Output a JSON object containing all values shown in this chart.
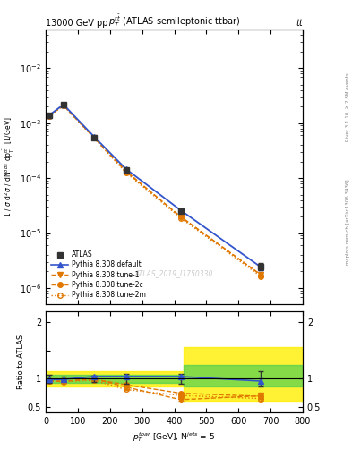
{
  "x_pts": [
    10,
    55,
    150,
    250,
    420,
    670
  ],
  "atlas_y": [
    0.0014,
    0.0022,
    0.00055,
    0.00014,
    2.5e-05,
    2.5e-06
  ],
  "atlas_yerr": [
    0.0001,
    0.0001,
    3e-05,
    1.2e-05,
    2e-06,
    3.5e-07
  ],
  "pythia_default_y": [
    0.00138,
    0.00218,
    0.00057,
    0.000146,
    2.6e-05,
    2.4e-06
  ],
  "pythia_tune1_y": [
    0.00135,
    0.0021,
    0.00055,
    0.000135,
    1.95e-05,
    1.75e-06
  ],
  "pythia_tune2c_y": [
    0.00135,
    0.0021,
    0.000545,
    0.00013,
    2e-05,
    1.72e-06
  ],
  "pythia_tune2m_y": [
    0.00134,
    0.00208,
    0.000535,
    0.000125,
    1.88e-05,
    1.62e-06
  ],
  "ratio_default_y": [
    0.985,
    0.99,
    1.04,
    1.04,
    1.04,
    0.96
  ],
  "ratio_default_yerr": [
    0.01,
    0.008,
    0.01,
    0.01,
    0.015,
    0.04
  ],
  "ratio_atlas_yerr": [
    0.07,
    0.045,
    0.055,
    0.085,
    0.08,
    0.14
  ],
  "ratio_tune1_y": [
    0.965,
    0.955,
    1.0,
    0.855,
    0.63,
    0.7
  ],
  "ratio_tune1_yerr": [
    0.01,
    0.008,
    0.01,
    0.01,
    0.015,
    0.04
  ],
  "ratio_tune2c_y": [
    0.965,
    0.955,
    0.995,
    0.895,
    0.745,
    0.69
  ],
  "ratio_tune2c_yerr": [
    0.01,
    0.008,
    0.01,
    0.01,
    0.015,
    0.04
  ],
  "ratio_tune2m_y": [
    0.96,
    0.95,
    0.975,
    0.81,
    0.705,
    0.65
  ],
  "ratio_tune2m_yerr": [
    0.01,
    0.008,
    0.01,
    0.01,
    0.015,
    0.04
  ],
  "band_x_step": [
    0,
    150,
    150,
    430,
    430,
    800
  ],
  "band_green_lo": [
    0.935,
    0.935,
    0.935,
    0.935,
    0.86,
    0.86
  ],
  "band_green_hi": [
    1.065,
    1.065,
    1.065,
    1.065,
    1.24,
    1.24
  ],
  "band_yellow_lo": [
    0.86,
    0.86,
    0.86,
    0.86,
    0.62,
    0.62
  ],
  "band_yellow_hi": [
    1.14,
    1.14,
    1.14,
    1.14,
    1.56,
    1.56
  ],
  "color_atlas": "#333333",
  "color_default": "#3355cc",
  "color_tune": "#e07800",
  "color_green": "#33cc55",
  "color_yellow": "#ffee00",
  "ylim_main": [
    5e-07,
    0.05
  ],
  "ylim_ratio": [
    0.41,
    2.19
  ],
  "xlim": [
    0,
    800
  ],
  "watermark": "ATLAS_2019_I1750330",
  "label_top_left": "13000 GeV pp",
  "label_top_right": "tt",
  "plot_title": "$p_T^{t\\bar{t}}$ (ATLAS semileptonic ttbar)",
  "ylabel_main": "1 / $\\sigma$ d$^2\\sigma$ / dN$^{obs}$ dp$^{t\\bar{t}}_T$  [1/GeV]",
  "ylabel_ratio": "Ratio to ATLAS",
  "xlabel": "$p^{\\{tbar\\}}_T$ [GeV], N$^{jets}$ = 5",
  "legend_atlas": "ATLAS",
  "legend_default": "Pythia 8.308 default",
  "legend_tune1": "Pythia 8.308 tune-1",
  "legend_tune2c": "Pythia 8.308 tune-2c",
  "legend_tune2m": "Pythia 8.308 tune-2m",
  "right_text1": "Rivet 3.1.10, ≥ 2.8M events",
  "right_text2": "mcplots.cern.ch [arXiv:1306.3436]"
}
